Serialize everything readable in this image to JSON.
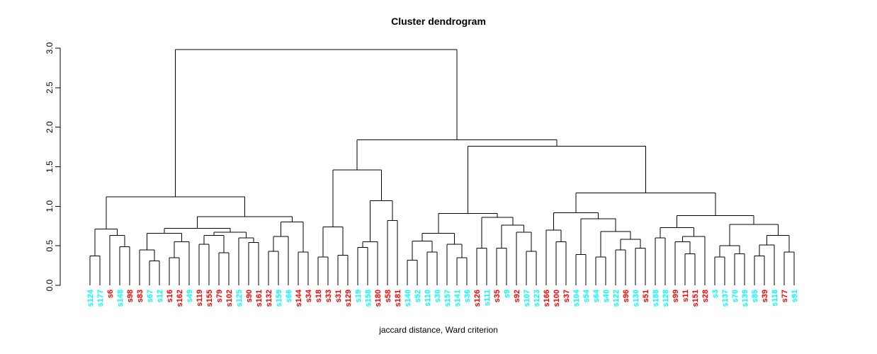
{
  "title": "Cluster dendrogram",
  "xlabel": "jaccard distance, Ward criterion",
  "colors": {
    "red": "#FF0000",
    "cyan": "#00FFFF",
    "line": "#000000"
  },
  "y_axis": {
    "ticks": [
      "0.0",
      "0.5",
      "1.0",
      "1.5",
      "2.0",
      "2.5",
      "3.0"
    ],
    "min": 0.0,
    "max": 3.0
  },
  "chart_data": {
    "type": "dendrogram",
    "title": "Cluster dendrogram",
    "xlabel": "jaccard distance, Ward criterion",
    "ylim": [
      0.0,
      3.0
    ],
    "leaf_count": 72,
    "leaves": [
      {
        "label": "s124",
        "color": "cyan"
      },
      {
        "label": "s177",
        "color": "cyan"
      },
      {
        "label": "s6",
        "color": "red"
      },
      {
        "label": "s148",
        "color": "cyan"
      },
      {
        "label": "s98",
        "color": "red"
      },
      {
        "label": "s83",
        "color": "red"
      },
      {
        "label": "s67",
        "color": "cyan"
      },
      {
        "label": "s12",
        "color": "cyan"
      },
      {
        "label": "s16",
        "color": "red"
      },
      {
        "label": "s162",
        "color": "red"
      },
      {
        "label": "s49",
        "color": "cyan"
      },
      {
        "label": "s119",
        "color": "red"
      },
      {
        "label": "s155",
        "color": "red"
      },
      {
        "label": "s79",
        "color": "red"
      },
      {
        "label": "s102",
        "color": "red"
      },
      {
        "label": "s125",
        "color": "cyan"
      },
      {
        "label": "s90",
        "color": "red"
      },
      {
        "label": "s161",
        "color": "red"
      },
      {
        "label": "s132",
        "color": "red"
      },
      {
        "label": "s159",
        "color": "cyan"
      },
      {
        "label": "s66",
        "color": "cyan"
      },
      {
        "label": "s144",
        "color": "red"
      },
      {
        "label": "s34",
        "color": "red"
      },
      {
        "label": "s18",
        "color": "red"
      },
      {
        "label": "s33",
        "color": "red"
      },
      {
        "label": "s31",
        "color": "red"
      },
      {
        "label": "s129",
        "color": "red"
      },
      {
        "label": "s19",
        "color": "cyan"
      },
      {
        "label": "s158",
        "color": "cyan"
      },
      {
        "label": "s180",
        "color": "red"
      },
      {
        "label": "s58",
        "color": "red"
      },
      {
        "label": "s181",
        "color": "red"
      },
      {
        "label": "s140",
        "color": "cyan"
      },
      {
        "label": "s52",
        "color": "cyan"
      },
      {
        "label": "s110",
        "color": "cyan"
      },
      {
        "label": "s30",
        "color": "cyan"
      },
      {
        "label": "s157",
        "color": "cyan"
      },
      {
        "label": "s141",
        "color": "cyan"
      },
      {
        "label": "s36",
        "color": "cyan"
      },
      {
        "label": "s126",
        "color": "red"
      },
      {
        "label": "s111",
        "color": "cyan"
      },
      {
        "label": "s35",
        "color": "red"
      },
      {
        "label": "s9",
        "color": "cyan"
      },
      {
        "label": "s92",
        "color": "red"
      },
      {
        "label": "s107",
        "color": "cyan"
      },
      {
        "label": "s123",
        "color": "cyan"
      },
      {
        "label": "s166",
        "color": "red"
      },
      {
        "label": "s100",
        "color": "red"
      },
      {
        "label": "s37",
        "color": "red"
      },
      {
        "label": "s104",
        "color": "cyan"
      },
      {
        "label": "s54",
        "color": "cyan"
      },
      {
        "label": "s64",
        "color": "cyan"
      },
      {
        "label": "s40",
        "color": "cyan"
      },
      {
        "label": "s122",
        "color": "cyan"
      },
      {
        "label": "s96",
        "color": "red"
      },
      {
        "label": "s130",
        "color": "cyan"
      },
      {
        "label": "s51",
        "color": "red"
      },
      {
        "label": "s188",
        "color": "cyan"
      },
      {
        "label": "s128",
        "color": "cyan"
      },
      {
        "label": "s99",
        "color": "red"
      },
      {
        "label": "s11",
        "color": "red"
      },
      {
        "label": "s151",
        "color": "red"
      },
      {
        "label": "s28",
        "color": "red"
      },
      {
        "label": "s3",
        "color": "cyan"
      },
      {
        "label": "s137",
        "color": "cyan"
      },
      {
        "label": "s70",
        "color": "cyan"
      },
      {
        "label": "s139",
        "color": "cyan"
      },
      {
        "label": "s85",
        "color": "cyan"
      },
      {
        "label": "s39",
        "color": "red"
      },
      {
        "label": "s118",
        "color": "cyan"
      },
      {
        "label": "s77",
        "color": "red"
      },
      {
        "label": "s91",
        "color": "cyan"
      }
    ],
    "tree": {
      "h": 2.98,
      "c": [
        {
          "h": 1.12,
          "c": [
            {
              "h": 0.71,
              "c": [
                {
                  "h": 0.37,
                  "c": [
                    "s124",
                    "s177"
                  ]
                },
                {
                  "h": 0.63,
                  "c": [
                    "s6",
                    {
                      "h": 0.49,
                      "c": [
                        "s148",
                        "s98"
                      ]
                    }
                  ]
                }
              ]
            },
            {
              "h": 0.87,
              "c": [
                {
                  "h": 0.72,
                  "c": [
                    {
                      "h": 0.66,
                      "c": [
                        {
                          "h": 0.45,
                          "c": [
                            "s83",
                            {
                              "h": 0.31,
                              "c": [
                                "s67",
                                "s12"
                              ]
                            }
                          ]
                        },
                        {
                          "h": 0.55,
                          "c": [
                            {
                              "h": 0.35,
                              "c": [
                                "s16",
                                "s162"
                              ]
                            },
                            "s49"
                          ]
                        }
                      ]
                    },
                    {
                      "h": 0.67,
                      "c": [
                        {
                          "h": 0.63,
                          "c": [
                            {
                              "h": 0.52,
                              "c": [
                                "s119",
                                "s155"
                              ]
                            },
                            {
                              "h": 0.41,
                              "c": [
                                "s79",
                                "s102"
                              ]
                            }
                          ]
                        },
                        {
                          "h": 0.6,
                          "c": [
                            "s125",
                            {
                              "h": 0.54,
                              "c": [
                                "s90",
                                "s161"
                              ]
                            }
                          ]
                        }
                      ]
                    }
                  ]
                },
                {
                  "h": 0.8,
                  "c": [
                    {
                      "h": 0.62,
                      "c": [
                        {
                          "h": 0.43,
                          "c": [
                            "s132",
                            "s159"
                          ]
                        },
                        "s66"
                      ]
                    },
                    {
                      "h": 0.42,
                      "c": [
                        "s144",
                        "s34"
                      ]
                    }
                  ]
                }
              ]
            }
          ]
        },
        {
          "h": 1.84,
          "c": [
            {
              "h": 1.46,
              "c": [
                {
                  "h": 0.74,
                  "c": [
                    {
                      "h": 0.36,
                      "c": [
                        "s18",
                        "s33"
                      ]
                    },
                    {
                      "h": 0.38,
                      "c": [
                        "s31",
                        "s129"
                      ]
                    }
                  ]
                },
                {
                  "h": 1.07,
                  "c": [
                    {
                      "h": 0.55,
                      "c": [
                        {
                          "h": 0.48,
                          "c": [
                            "s19",
                            "s158"
                          ]
                        },
                        "s180"
                      ]
                    },
                    {
                      "h": 0.82,
                      "c": [
                        "s58",
                        "s181"
                      ]
                    }
                  ]
                }
              ]
            },
            {
              "h": 1.76,
              "c": [
                {
                  "h": 0.91,
                  "c": [
                    {
                      "h": 0.66,
                      "c": [
                        {
                          "h": 0.56,
                          "c": [
                            {
                              "h": 0.32,
                              "c": [
                                "s140",
                                "s52"
                              ]
                            },
                            {
                              "h": 0.42,
                              "c": [
                                "s110",
                                "s30"
                              ]
                            }
                          ]
                        },
                        {
                          "h": 0.52,
                          "c": [
                            "s157",
                            {
                              "h": 0.35,
                              "c": [
                                "s141",
                                "s36"
                              ]
                            }
                          ]
                        }
                      ]
                    },
                    {
                      "h": 0.86,
                      "c": [
                        {
                          "h": 0.47,
                          "c": [
                            "s126",
                            "s111"
                          ]
                        },
                        {
                          "h": 0.76,
                          "c": [
                            {
                              "h": 0.47,
                              "c": [
                                "s35",
                                "s9"
                              ]
                            },
                            {
                              "h": 0.67,
                              "c": [
                                "s92",
                                {
                                  "h": 0.43,
                                  "c": [
                                    "s107",
                                    "s123"
                                  ]
                                }
                              ]
                            }
                          ]
                        }
                      ]
                    }
                  ]
                },
                {
                  "h": 1.17,
                  "c": [
                    {
                      "h": 0.92,
                      "c": [
                        {
                          "h": 0.7,
                          "c": [
                            "s166",
                            {
                              "h": 0.55,
                              "c": [
                                "s100",
                                "s37"
                              ]
                            }
                          ]
                        },
                        {
                          "h": 0.84,
                          "c": [
                            {
                              "h": 0.39,
                              "c": [
                                "s104",
                                "s54"
                              ]
                            },
                            {
                              "h": 0.68,
                              "c": [
                                {
                                  "h": 0.36,
                                  "c": [
                                    "s64",
                                    "s40"
                                  ]
                                },
                                {
                                  "h": 0.58,
                                  "c": [
                                    {
                                      "h": 0.45,
                                      "c": [
                                        "s122",
                                        "s96"
                                      ]
                                    },
                                    {
                                      "h": 0.47,
                                      "c": [
                                        "s130",
                                        "s51"
                                      ]
                                    }
                                  ]
                                }
                              ]
                            }
                          ]
                        }
                      ]
                    },
                    {
                      "h": 0.88,
                      "c": [
                        {
                          "h": 0.73,
                          "c": [
                            {
                              "h": 0.6,
                              "c": [
                                "s188",
                                "s128"
                              ]
                            },
                            {
                              "h": 0.62,
                              "c": [
                                {
                                  "h": 0.55,
                                  "c": [
                                    "s99",
                                    {
                                      "h": 0.4,
                                      "c": [
                                        "s11",
                                        "s151"
                                      ]
                                    }
                                  ]
                                },
                                "s28"
                              ]
                            }
                          ]
                        },
                        {
                          "h": 0.77,
                          "c": [
                            {
                              "h": 0.5,
                              "c": [
                                {
                                  "h": 0.36,
                                  "c": [
                                    "s3",
                                    "s137"
                                  ]
                                },
                                {
                                  "h": 0.4,
                                  "c": [
                                    "s70",
                                    "s139"
                                  ]
                                }
                              ]
                            },
                            {
                              "h": 0.63,
                              "c": [
                                {
                                  "h": 0.51,
                                  "c": [
                                    {
                                      "h": 0.37,
                                      "c": [
                                        "s85",
                                        "s39"
                                      ]
                                    },
                                    "s118"
                                  ]
                                },
                                {
                                  "h": 0.42,
                                  "c": [
                                    "s77",
                                    "s91"
                                  ]
                                }
                              ]
                            }
                          ]
                        }
                      ]
                    }
                  ]
                }
              ]
            }
          ]
        }
      ]
    }
  }
}
